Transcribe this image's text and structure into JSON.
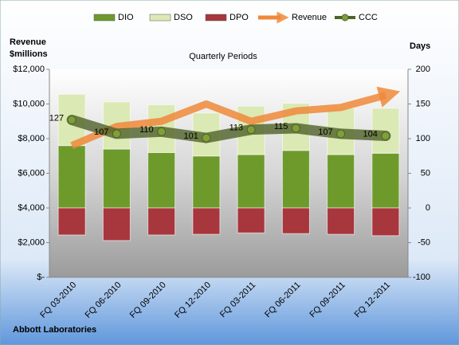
{
  "chart_data": {
    "type": "combo",
    "title": "Quarterly Periods",
    "footer": "Abbott Laboratories",
    "y_label": "Revenue $millions",
    "y2_label": "Days",
    "stacked": true,
    "categories": [
      "FQ 03-2010",
      "FQ 06-2010",
      "FQ 09-2010",
      "FQ 12-2010",
      "FQ 03-2011",
      "FQ 06-2011",
      "FQ 09-2011",
      "FQ 12-2011"
    ],
    "series": [
      {
        "name": "DIO",
        "type": "bar",
        "axis": "y2",
        "color": "#6e9a2c",
        "values": [
          90,
          85,
          80,
          75,
          77,
          83,
          77,
          79
        ]
      },
      {
        "name": "DSO",
        "type": "bar",
        "axis": "y2",
        "color": "#dbe9b5",
        "values": [
          74,
          68,
          69,
          62,
          70,
          68,
          67,
          65
        ]
      },
      {
        "name": "DPO",
        "type": "bar",
        "axis": "y2",
        "color": "#a8363d",
        "values": [
          -39,
          -47,
          -39,
          -38,
          -36,
          -37,
          -38,
          -40
        ]
      },
      {
        "name": "Revenue",
        "type": "arrow",
        "axis": "y",
        "color": "#f0883a",
        "values": [
          7600,
          8700,
          9000,
          10000,
          9000,
          9600,
          9800,
          10500
        ]
      },
      {
        "name": "CCC",
        "type": "line",
        "axis": "y2",
        "color": "#4f6228",
        "values": [
          127,
          107,
          110,
          101,
          113,
          115,
          107,
          104
        ]
      }
    ],
    "ylim": [
      0,
      12000
    ],
    "yticks": [
      {
        "value": 0,
        "label": "$-"
      },
      {
        "value": 2000,
        "label": "$2,000"
      },
      {
        "value": 4000,
        "label": "$4,000"
      },
      {
        "value": 6000,
        "label": "$6,000"
      },
      {
        "value": 8000,
        "label": "$8,000"
      },
      {
        "value": 10000,
        "label": "$10,000"
      },
      {
        "value": 12000,
        "label": "$12,000"
      }
    ],
    "y2lim": [
      -100,
      200
    ],
    "y2ticks": [
      -100,
      -50,
      0,
      50,
      100,
      150,
      200
    ]
  }
}
